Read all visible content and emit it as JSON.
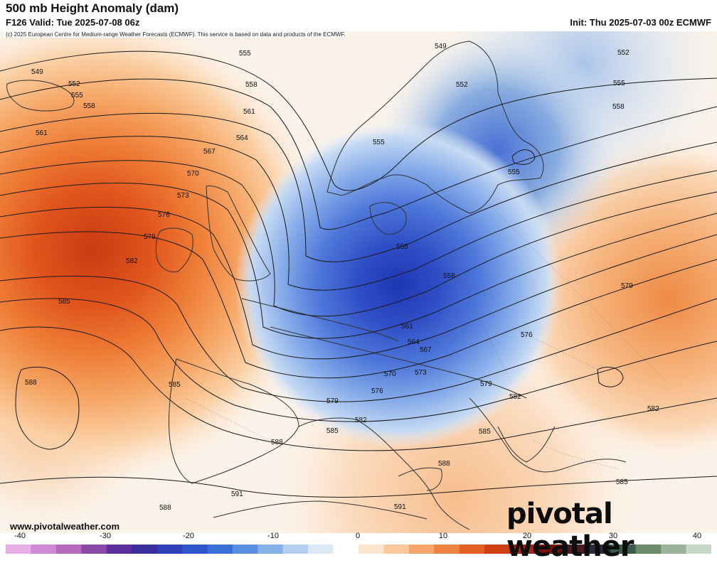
{
  "header": {
    "title": "500 mb Height Anomaly (dam)",
    "valid": "F126 Valid: Tue 2025-07-08 06z",
    "init": "Init: Thu 2025-07-03 00z ECMWF",
    "copyright": "(c) 2025 European Centre for Medium-range Weather Forecasts (ECMWF). This service is based on data and products of the ECMWF."
  },
  "footer": {
    "website": "www.pivotalweather.com",
    "brand": "pivotal weather"
  },
  "contour_labels": [
    "549",
    "552",
    "555",
    "558",
    "561",
    "564",
    "567",
    "570",
    "573",
    "576",
    "579",
    "582",
    "585",
    "588",
    "591"
  ],
  "colorbar": {
    "ticks": [
      "-40",
      "-30",
      "-20",
      "-10",
      "0",
      "10",
      "20",
      "30",
      "40"
    ],
    "colors": [
      "#e8b0e8",
      "#d08ad4",
      "#b86ac0",
      "#8a4aa8",
      "#5a2f9a",
      "#3a2d9c",
      "#2f3fb6",
      "#2f55cc",
      "#3a6fd8",
      "#5a8ee0",
      "#86b0e8",
      "#b4cff0",
      "#dde8f6",
      "#ffffff",
      "#fde6cf",
      "#f9c99c",
      "#f4a56a",
      "#ee8240",
      "#e45f22",
      "#cf3f14",
      "#a8230e",
      "#7a0f0c",
      "#4a1a20",
      "#2a2a3a",
      "#3a5a4a",
      "#6a8a6a",
      "#9ab39a",
      "#c8d8c8"
    ]
  },
  "colors": {
    "positive_strong": "#d9400f",
    "positive_mid": "#f08a40",
    "positive_weak": "#fbd3a8",
    "negative_strong": "#2538b8",
    "negative_mid": "#4f76dc",
    "negative_weak": "#b9d0f0"
  }
}
